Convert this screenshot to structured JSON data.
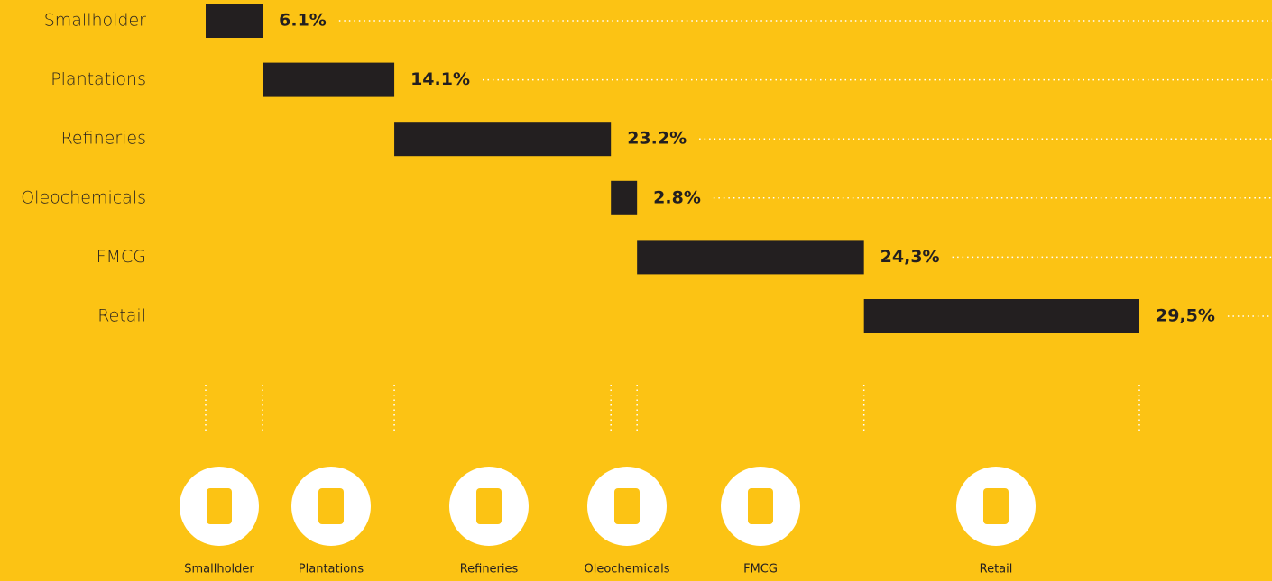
{
  "chart_data": {
    "type": "waterfall",
    "categories": [
      "Smallholder",
      "Plantations",
      "Refineries",
      "Oleochemicals",
      "FMCG",
      "Retail"
    ],
    "values": [
      6.1,
      14.1,
      23.2,
      2.8,
      24.3,
      29.5
    ],
    "value_labels": [
      "6.1%",
      "14.1%",
      "23.2%",
      "2.8%",
      "24,3%",
      "29,5%"
    ],
    "color": "#231f20",
    "xlim": [
      0,
      100
    ]
  }
}
